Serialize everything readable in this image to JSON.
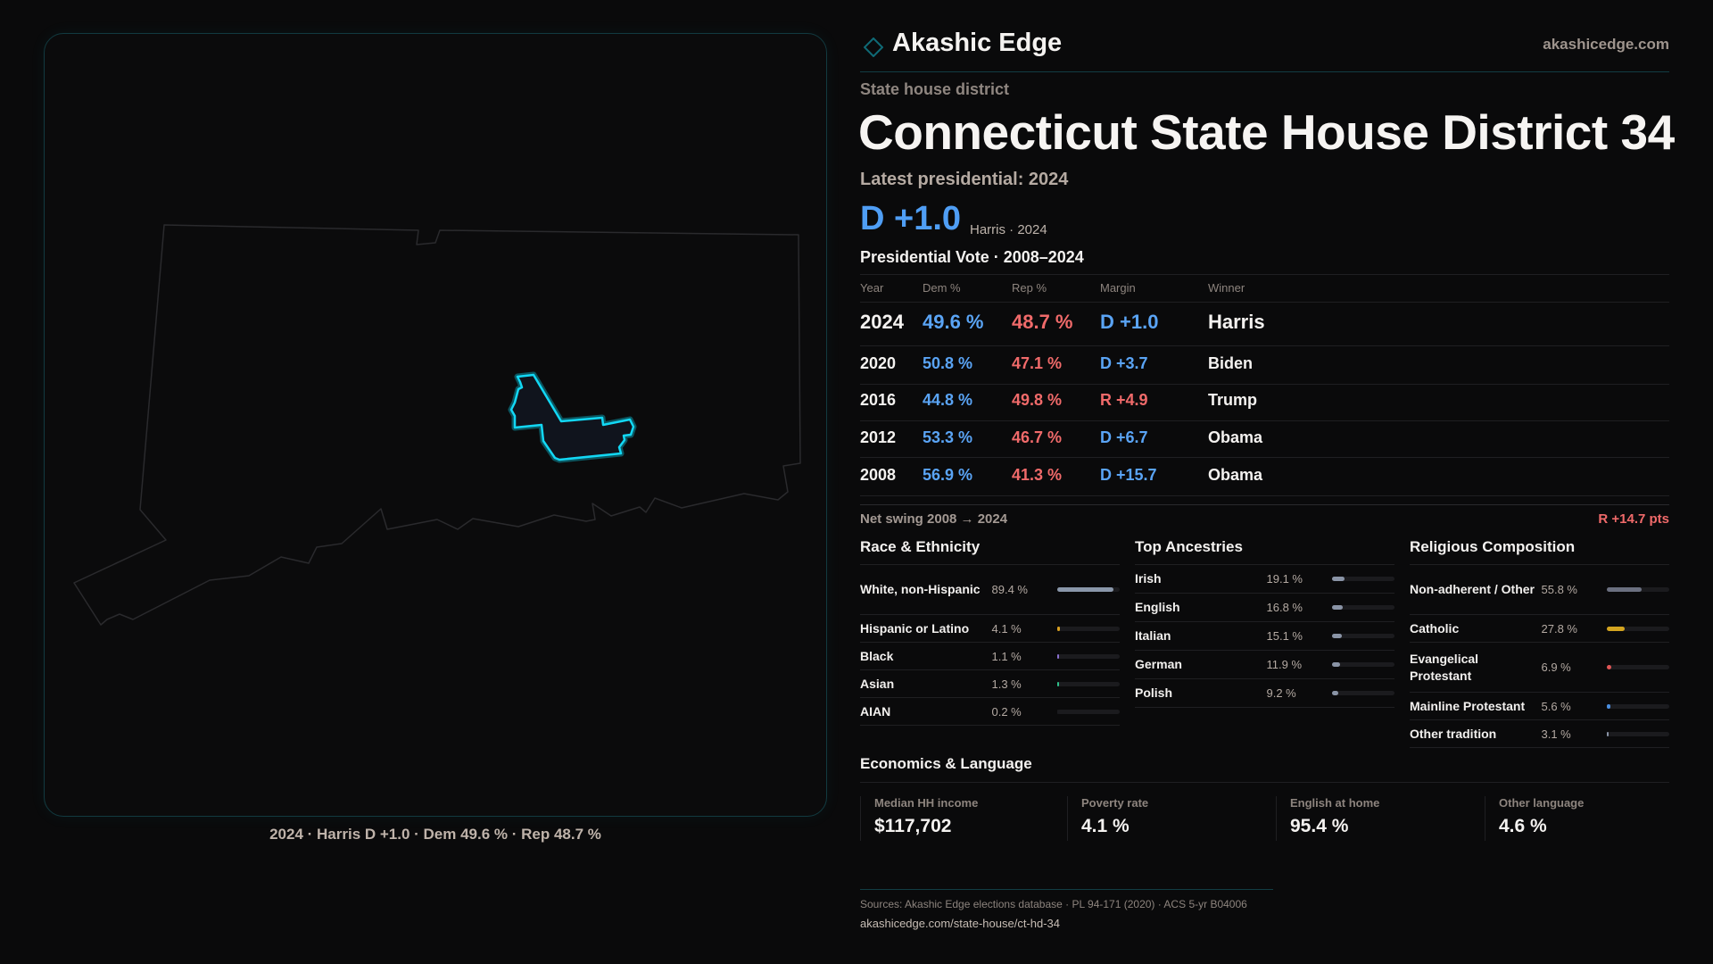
{
  "header": {
    "brand": "Akashic Edge",
    "site": "akashicedge.com",
    "logo_icon": "diamond-icon"
  },
  "kicker": "State house district",
  "title": "Connecticut State House District 34",
  "latest": "Latest presidential: 2024",
  "headline_margin": "D +1.0",
  "headline_sub": "Harris · 2024",
  "colors": {
    "dem": "#5aa4f5",
    "rep": "#f06a6a",
    "accent": "#00d4f0",
    "background": "#0a0a0b"
  },
  "vote_table": {
    "title": "Presidential Vote · 2008–2024",
    "headers": [
      "Year",
      "Dem %",
      "Rep %",
      "Margin",
      "Winner"
    ],
    "rows": [
      {
        "year": "2024",
        "dem": "49.6 %",
        "rep": "48.7 %",
        "margin": "D +1.0",
        "party": "D",
        "winner": "Harris"
      },
      {
        "year": "2020",
        "dem": "50.8 %",
        "rep": "47.1 %",
        "margin": "D +3.7",
        "party": "D",
        "winner": "Biden"
      },
      {
        "year": "2016",
        "dem": "44.8 %",
        "rep": "49.8 %",
        "margin": "R +4.9",
        "party": "R",
        "winner": "Trump"
      },
      {
        "year": "2012",
        "dem": "53.3 %",
        "rep": "46.7 %",
        "margin": "D +6.7",
        "party": "D",
        "winner": "Obama"
      },
      {
        "year": "2008",
        "dem": "56.9 %",
        "rep": "41.3 %",
        "margin": "D +15.7",
        "party": "D",
        "winner": "Obama"
      }
    ],
    "net_swing_label": "Net swing 2008 → 2024",
    "net_swing_value": "R +14.7 pts"
  },
  "race": {
    "title": "Race & Ethnicity",
    "items": [
      {
        "label": "White, non-Hispanic",
        "value": "89.4 %",
        "pct": 89.4,
        "color": "#8a97aa",
        "tall": true
      },
      {
        "label": "Hispanic or Latino",
        "value": "4.1 %",
        "pct": 4.1,
        "color": "#d9a020"
      },
      {
        "label": "Black",
        "value": "1.1 %",
        "pct": 1.1,
        "color": "#8a6fd0"
      },
      {
        "label": "Asian",
        "value": "1.3 %",
        "pct": 1.3,
        "color": "#2fbf8a"
      },
      {
        "label": "AIAN",
        "value": "0.2 %",
        "pct": 0.2,
        "color": "#1b1b1e"
      }
    ]
  },
  "ancestry": {
    "title": "Top Ancestries",
    "items": [
      {
        "label": "Irish",
        "value": "19.1 %",
        "pct": 19.1,
        "color": "#8a94a6"
      },
      {
        "label": "English",
        "value": "16.8 %",
        "pct": 16.8,
        "color": "#8a94a6"
      },
      {
        "label": "Italian",
        "value": "15.1 %",
        "pct": 15.1,
        "color": "#8a94a6"
      },
      {
        "label": "German",
        "value": "11.9 %",
        "pct": 11.9,
        "color": "#8a94a6"
      },
      {
        "label": "Polish",
        "value": "9.2 %",
        "pct": 9.2,
        "color": "#8a94a6"
      }
    ]
  },
  "religion": {
    "title": "Religious Composition",
    "items": [
      {
        "label": "Non-adherent / Other",
        "value": "55.8 %",
        "pct": 55.8,
        "color": "#6b7080",
        "tall": true
      },
      {
        "label": "Catholic",
        "value": "27.8 %",
        "pct": 27.8,
        "color": "#d4a520"
      },
      {
        "label": "Evangelical Protestant",
        "value": "6.9 %",
        "pct": 6.9,
        "color": "#e05555",
        "tall": true
      },
      {
        "label": "Mainline Protestant",
        "value": "5.6 %",
        "pct": 5.6,
        "color": "#4a8ee0"
      },
      {
        "label": "Other tradition",
        "value": "3.1 %",
        "pct": 3.1,
        "color": "#8a94a6"
      }
    ]
  },
  "economics": {
    "title": "Economics & Language",
    "cards": [
      {
        "label": "Median HH income",
        "value": "$117,702"
      },
      {
        "label": "Poverty rate",
        "value": "4.1 %"
      },
      {
        "label": "English at home",
        "value": "95.4 %"
      },
      {
        "label": "Other language",
        "value": "4.6 %"
      }
    ]
  },
  "map_caption": "2024 · Harris D +1.0 · Dem 49.6 % · Rep 48.7 %",
  "footer": {
    "sources": "Sources: Akashic Edge elections database · PL 94-171 (2020) · ACS 5-yr B04006",
    "url": "akashicedge.com/state-house/ct-hd-34"
  }
}
